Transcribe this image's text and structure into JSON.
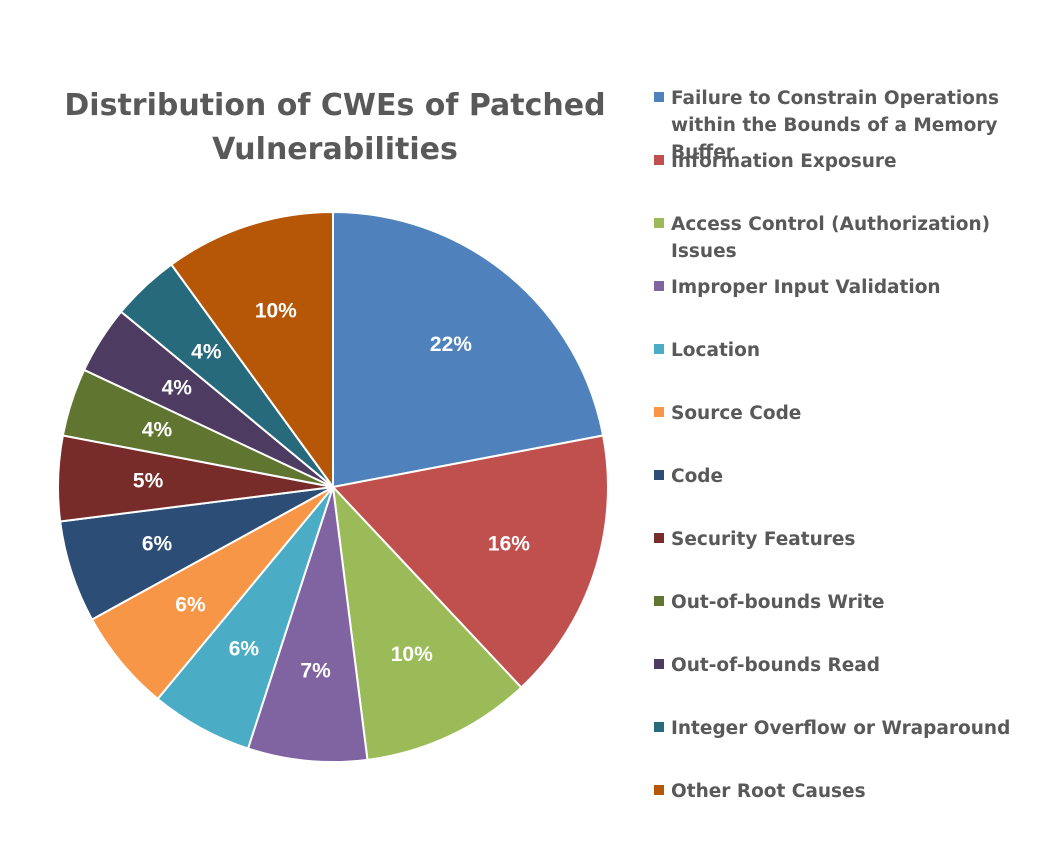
{
  "chart_data": {
    "type": "pie",
    "title": "Distribution of CWEs of Patched Vulnerabilities",
    "legend_position": "right",
    "value_unit": "%",
    "slices": [
      {
        "label": "Failure to Constrain Operations within the Bounds of a Memory Buffer",
        "value": 22,
        "color": "#4F81BD"
      },
      {
        "label": "Information Exposure",
        "value": 16,
        "color": "#C0504D"
      },
      {
        "label": "Access Control (Authorization) Issues",
        "value": 10,
        "color": "#9BBB59"
      },
      {
        "label": "Improper Input Validation",
        "value": 7,
        "color": "#8064A2"
      },
      {
        "label": "Location",
        "value": 6,
        "color": "#4BACC6"
      },
      {
        "label": "Source Code",
        "value": 6,
        "color": "#F79646"
      },
      {
        "label": "Code",
        "value": 6,
        "color": "#2C4D75"
      },
      {
        "label": "Security Features",
        "value": 5,
        "color": "#772C2A"
      },
      {
        "label": "Out-of-bounds Write",
        "value": 4,
        "color": "#5F7530"
      },
      {
        "label": "Out-of-bounds Read",
        "value": 4,
        "color": "#4D3B62"
      },
      {
        "label": "Integer Overflow or Wraparound",
        "value": 4,
        "color": "#276A7C"
      },
      {
        "label": "Other Root Causes",
        "value": 10,
        "color": "#B65708"
      }
    ]
  }
}
